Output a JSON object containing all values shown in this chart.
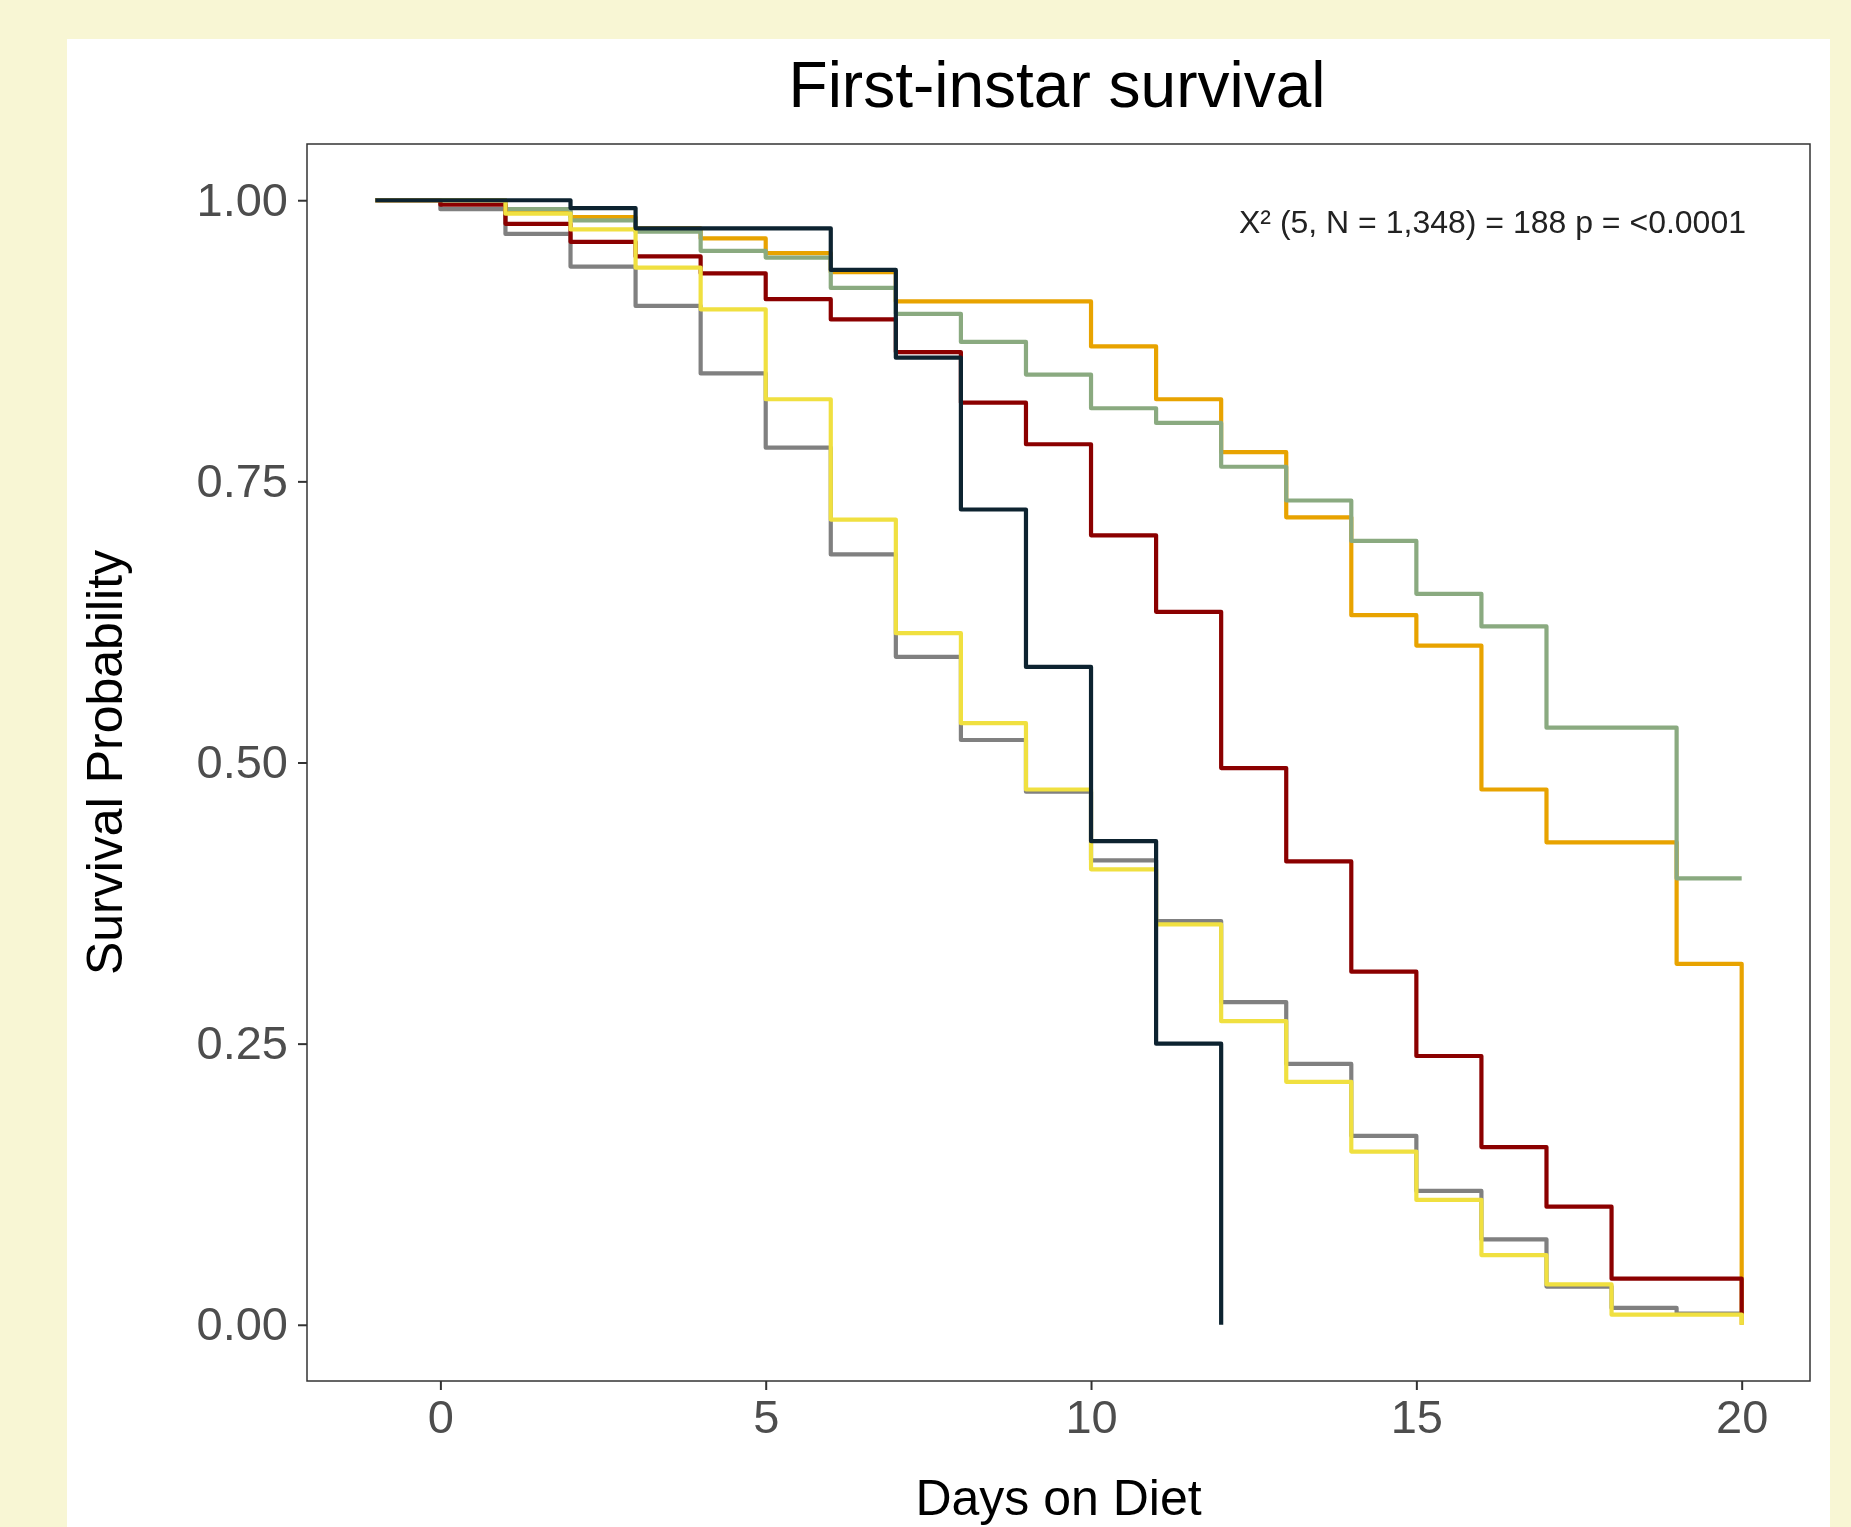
{
  "chart_data": {
    "type": "step",
    "title": "First-instar survival",
    "xlabel": "Days on Diet",
    "ylabel": "Survival Probability",
    "annotations": [
      "X² (5, N = 1,348) = 188 p = <0.0001"
    ],
    "xlim": [
      -2.05,
      21.05
    ],
    "xticks": [
      0,
      5,
      10,
      15,
      20
    ],
    "ylim": [
      -0.05,
      1.05
    ],
    "yticks": [
      {
        "value": 0,
        "label": "0.00"
      },
      {
        "value": 0.25,
        "label": "0.25"
      },
      {
        "value": 0.5,
        "label": "0.50"
      },
      {
        "value": 0.75,
        "label": "0.75"
      },
      {
        "value": 1,
        "label": "1.00"
      }
    ],
    "grid": false,
    "line_style": "solid",
    "marker": "none",
    "series": [
      {
        "color": "#808080",
        "x": [
          -1,
          0,
          1,
          2,
          3,
          4,
          5,
          6,
          7,
          8,
          9,
          10,
          11,
          12,
          13,
          14,
          15,
          16,
          17,
          18,
          19,
          20
        ],
        "values": [
          1,
          0.992,
          0.97,
          0.941,
          0.906,
          0.846,
          0.78,
          0.685,
          0.594,
          0.52,
          0.474,
          0.413,
          0.359,
          0.287,
          0.232,
          0.168,
          0.119,
          0.076,
          0.034,
          0.015,
          0.01,
          0.01
        ]
      },
      {
        "color": "#e8a300",
        "x": [
          -1,
          0,
          1,
          2,
          3,
          4,
          5,
          6,
          7,
          8,
          9,
          10,
          11,
          12,
          13,
          14,
          15,
          16,
          17,
          18,
          19,
          20
        ],
        "values": [
          1,
          1,
          0.99,
          0.985,
          0.975,
          0.966,
          0.953,
          0.936,
          0.91,
          0.91,
          0.91,
          0.87,
          0.823,
          0.776,
          0.718,
          0.631,
          0.604,
          0.476,
          0.429,
          0.429,
          0.321,
          0
        ]
      },
      {
        "color": "#8aaa80",
        "x": [
          -1,
          0,
          1,
          2,
          3,
          4,
          5,
          6,
          7,
          8,
          9,
          10,
          11,
          12,
          13,
          14,
          15,
          16,
          17,
          18,
          19,
          20
        ],
        "values": [
          1,
          1,
          0.992,
          0.982,
          0.972,
          0.955,
          0.949,
          0.922,
          0.899,
          0.874,
          0.845,
          0.815,
          0.802,
          0.763,
          0.733,
          0.697,
          0.65,
          0.621,
          0.531,
          0.531,
          0.397,
          0.397
        ]
      },
      {
        "color": "#8b0000",
        "x": [
          -1,
          0,
          1,
          2,
          3,
          4,
          5,
          6,
          7,
          8,
          9,
          10,
          11,
          12,
          13,
          14,
          15,
          16,
          17,
          18,
          19,
          20
        ],
        "values": [
          1,
          0.996,
          0.979,
          0.963,
          0.95,
          0.935,
          0.912,
          0.894,
          0.865,
          0.82,
          0.783,
          0.702,
          0.634,
          0.495,
          0.412,
          0.314,
          0.239,
          0.158,
          0.105,
          0.041,
          0.041,
          0.01
        ]
      },
      {
        "color": "#f0e040",
        "x": [
          -1,
          0,
          1,
          2,
          3,
          4,
          5,
          6,
          7,
          8,
          9,
          10,
          11,
          12,
          13,
          14,
          15,
          16,
          17,
          18,
          19,
          20
        ],
        "values": [
          1,
          1,
          0.988,
          0.974,
          0.94,
          0.903,
          0.823,
          0.716,
          0.615,
          0.535,
          0.476,
          0.405,
          0.356,
          0.27,
          0.216,
          0.154,
          0.111,
          0.062,
          0.036,
          0.009,
          0.009,
          0
        ]
      },
      {
        "color": "#0d2330",
        "x": [
          -1,
          0,
          1,
          2,
          3,
          4,
          5,
          6,
          7,
          8,
          9,
          10,
          11,
          12
        ],
        "values": [
          1,
          1,
          1,
          0.993,
          0.975,
          0.975,
          0.975,
          0.938,
          0.86,
          0.725,
          0.585,
          0.43,
          0.25,
          0
        ]
      }
    ]
  }
}
